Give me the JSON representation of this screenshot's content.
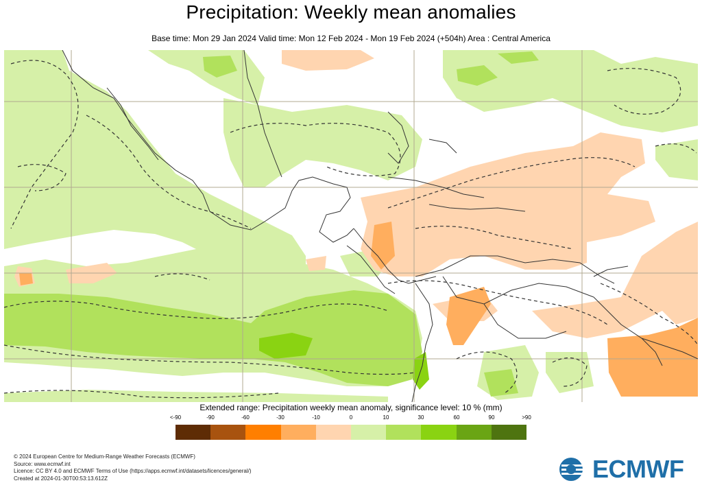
{
  "header": {
    "title": "Precipitation: Weekly mean anomalies",
    "subtitle": "Base time: Mon 29 Jan 2024 Valid time: Mon 12 Feb 2024 - Mon 19 Feb 2024 (+504h) Area : Central America"
  },
  "legend": {
    "title": "Extended range: Precipitation weekly mean anomaly, significance level: 10 % (mm)",
    "labels": [
      "<-90",
      "-90",
      "-60",
      "-30",
      "-10",
      "0",
      "10",
      "30",
      "60",
      "90",
      ">90"
    ],
    "colors": [
      "#5e2c05",
      "#a8530f",
      "#ff7f00",
      "#ffae5e",
      "#ffd5b0",
      "#d6f0a8",
      "#b1e15c",
      "#8ad312",
      "#6aa514",
      "#4e7410"
    ]
  },
  "map": {
    "colors": {
      "wet_light": "#d6f0a8",
      "wet_mid": "#b1e15c",
      "wet_strong": "#8ad312",
      "dry_light": "#ffd5b0",
      "dry_mid": "#ffae5e",
      "grid": "#b0a890",
      "coast": "#333333"
    }
  },
  "footer": {
    "copyright": "© 2024 European Centre for Medium-Range Weather Forecasts (ECMWF)",
    "source": "Source: www.ecmwf.int",
    "licence": "Licence: CC BY 4.0 and ECMWF Terms of Use (https://apps.ecmwf.int/datasets/licences/general/)",
    "created": "Created at 2024-01-30T00:53:13.612Z"
  },
  "logo": {
    "text": "ECMWF",
    "icon": "ecmwf-logo-icon"
  }
}
